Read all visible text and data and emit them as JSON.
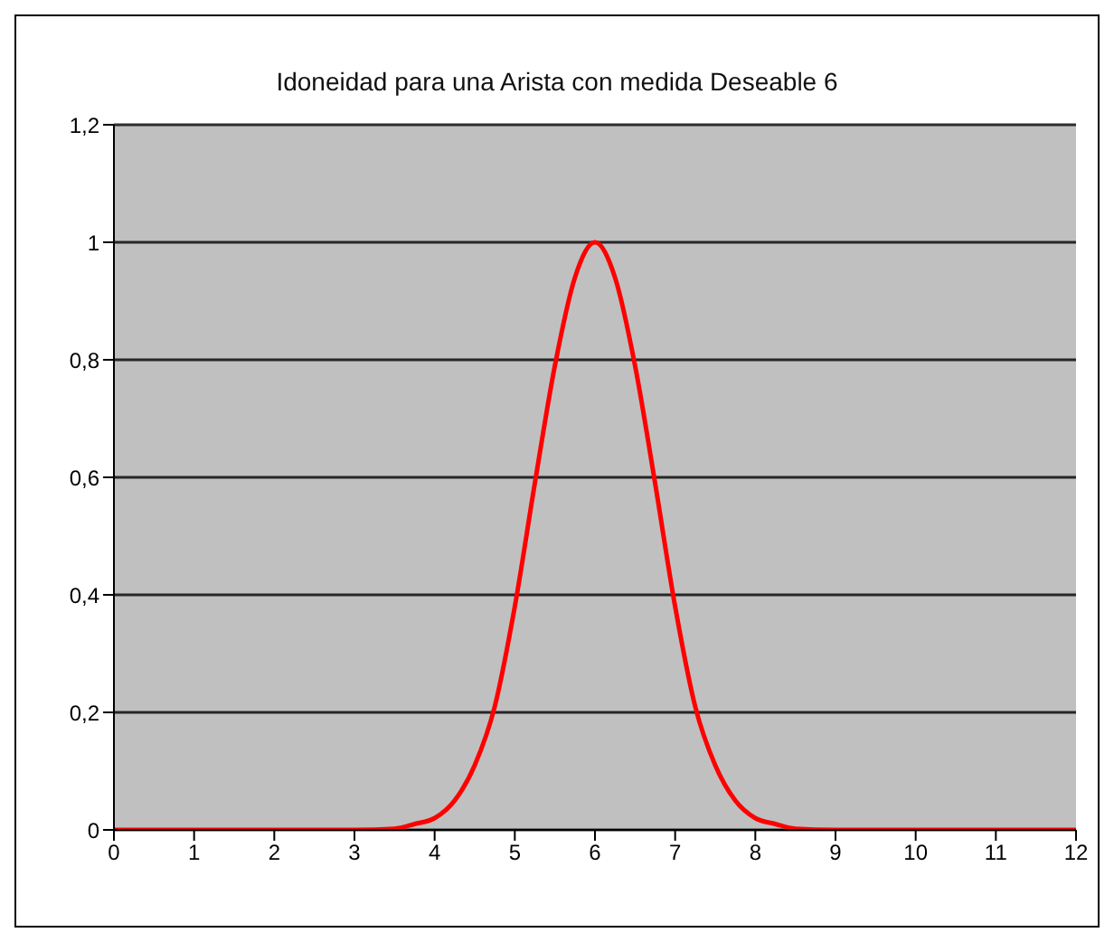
{
  "chart_data": {
    "type": "line",
    "title": "Idoneidad para una Arista con medida Deseable 6",
    "x": [
      0,
      1,
      2,
      3,
      3.5,
      3.75,
      4,
      4.25,
      4.5,
      4.75,
      5,
      5.25,
      5.5,
      5.75,
      6,
      6.25,
      6.5,
      6.75,
      7,
      7.25,
      7.5,
      7.75,
      8,
      8.25,
      8.5,
      9,
      10,
      11,
      12
    ],
    "series": [
      {
        "color": "#ff0000",
        "values": [
          0,
          0,
          0,
          0,
          0.002,
          0.01,
          0.02,
          0.05,
          0.11,
          0.21,
          0.38,
          0.59,
          0.79,
          0.94,
          1,
          0.94,
          0.79,
          0.59,
          0.38,
          0.21,
          0.11,
          0.05,
          0.02,
          0.01,
          0.002,
          0,
          0,
          0,
          0
        ]
      }
    ],
    "xlim": [
      0,
      12
    ],
    "xticks": [
      0,
      1,
      2,
      3,
      4,
      5,
      6,
      7,
      8,
      9,
      10,
      11,
      12
    ],
    "ylim": [
      0,
      1.2
    ],
    "yticks": [
      {
        "value": 0,
        "label": "0"
      },
      {
        "value": 0.2,
        "label": "0,2"
      },
      {
        "value": 0.4,
        "label": "0,4"
      },
      {
        "value": 0.6,
        "label": "0,6"
      },
      {
        "value": 0.8,
        "label": "0,8"
      },
      {
        "value": 1,
        "label": "1"
      },
      {
        "value": 1.2,
        "label": "1,2"
      }
    ],
    "grid": "y",
    "marker": "none",
    "line_style": "solid"
  }
}
